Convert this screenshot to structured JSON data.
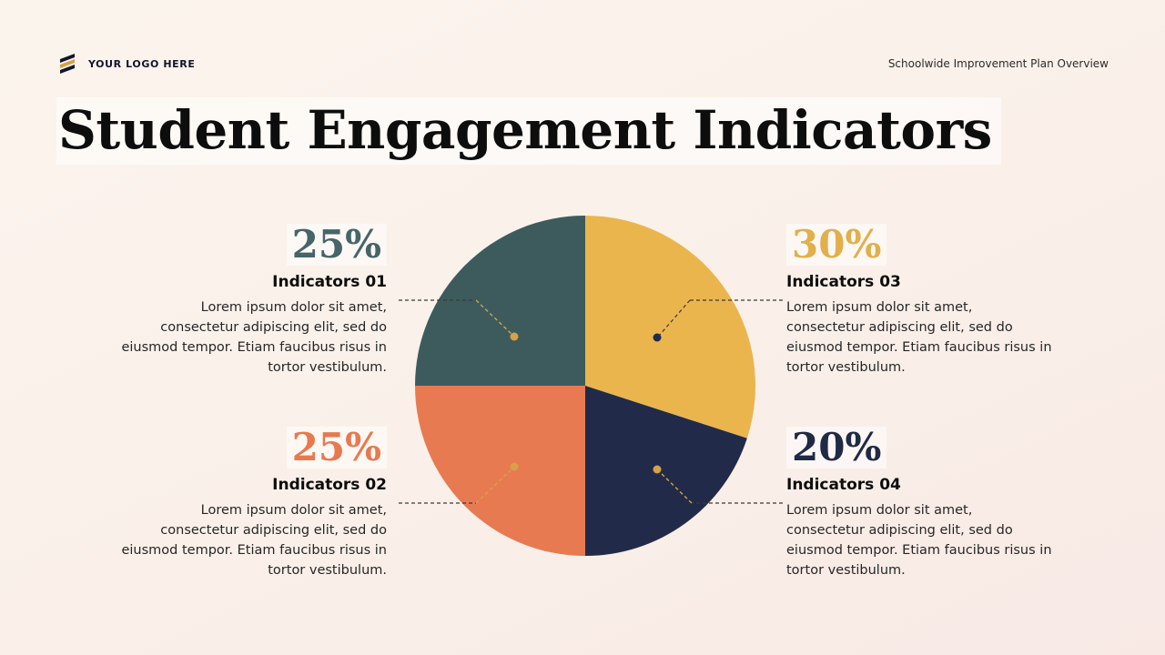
{
  "header": {
    "logo_text": "YOUR LOGO HERE",
    "subtitle": "Schoolwide Improvement Plan Overview"
  },
  "title": "Student Engagement Indicators",
  "chart_data": {
    "type": "pie",
    "title": "Student Engagement Indicators",
    "direction": "clockwise",
    "start_angle_deg": 0,
    "slices": [
      {
        "label": "Indicators 03",
        "value": 30,
        "color": "#EBB54E"
      },
      {
        "label": "Indicators 04",
        "value": 20,
        "color": "#212B49"
      },
      {
        "label": "Indicators 02",
        "value": 25,
        "color": "#E87A52"
      },
      {
        "label": "Indicators 01",
        "value": 25,
        "color": "#3D5B5D"
      }
    ]
  },
  "indicators": [
    {
      "percent": "25%",
      "label": "Indicators 01",
      "color": "#466568",
      "body": "Lorem ipsum dolor sit amet, consectetur adipiscing elit, sed do eiusmod tempor. Etiam faucibus risus in tortor vestibulum."
    },
    {
      "percent": "25%",
      "label": "Indicators 02",
      "color": "#E8794F",
      "body": "Lorem ipsum dolor sit amet, consectetur adipiscing elit, sed do eiusmod tempor. Etiam faucibus risus in tortor vestibulum."
    },
    {
      "percent": "30%",
      "label": "Indicators 03",
      "color": "#E2AF4B",
      "body": "Lorem ipsum dolor sit amet, consectetur adipiscing elit, sed do eiusmod tempor. Etiam faucibus risus in tortor vestibulum."
    },
    {
      "percent": "20%",
      "label": "Indicators 04",
      "color": "#1F2A44",
      "body": "Lorem ipsum dolor sit amet, consectetur adipiscing elit, sed do eiusmod tempor. Etiam faucibus risus in tortor vestibulum."
    }
  ],
  "accents": {
    "leader_dark": "#3A3A3A",
    "leader_gold": "#D4A247",
    "dot_gold": "#D4A247",
    "dot_navy": "#222C4B"
  }
}
